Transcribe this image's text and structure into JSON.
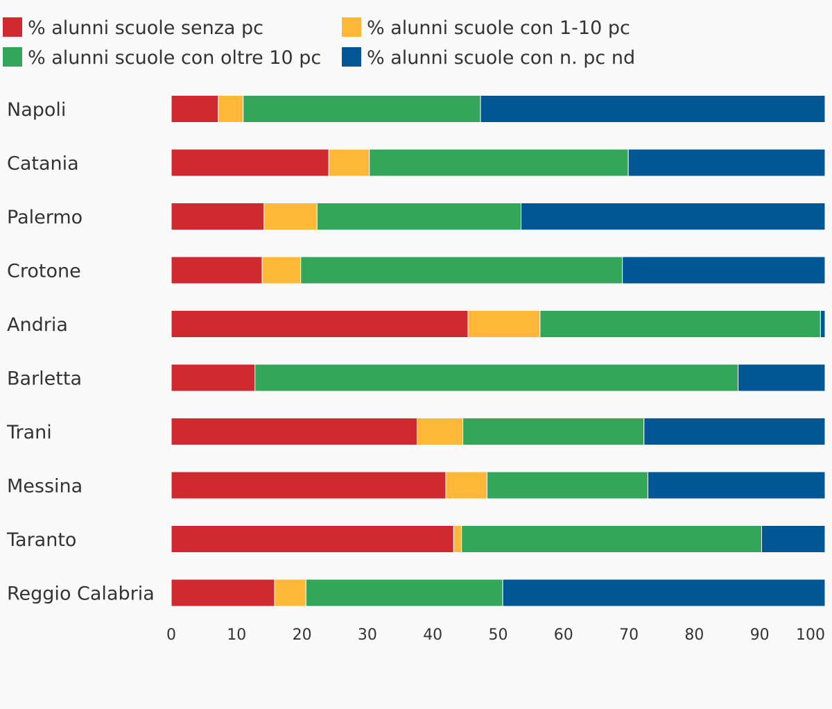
{
  "chart_data": {
    "type": "bar",
    "orientation": "horizontal",
    "stacked": true,
    "title": "",
    "xlabel": "",
    "ylabel": "",
    "xlim": [
      0,
      100
    ],
    "x_ticks": [
      0,
      10,
      20,
      30,
      40,
      50,
      60,
      70,
      80,
      90,
      100
    ],
    "grid": false,
    "legend_position": "top-left",
    "categories": [
      "Napoli",
      "Catania",
      "Palermo",
      "Crotone",
      "Andria",
      "Barletta",
      "Trani",
      "Messina",
      "Taranto",
      "Reggio Calabria"
    ],
    "series": [
      {
        "name": "% alunni scuole senza pc",
        "color": "#cf2a30",
        "values": [
          7.2,
          24.1,
          14.2,
          13.9,
          45.4,
          12.8,
          37.6,
          42.0,
          43.2,
          15.8
        ]
      },
      {
        "name": "% alunni scuole con 1-10 pc",
        "color": "#ffb739",
        "values": [
          3.8,
          6.2,
          8.1,
          5.9,
          11.0,
          0.0,
          7.0,
          6.3,
          1.2,
          4.8
        ]
      },
      {
        "name": "% alunni scuole con oltre 10 pc",
        "color": "#33a65a",
        "values": [
          36.3,
          39.6,
          31.2,
          49.2,
          42.9,
          73.9,
          27.7,
          24.6,
          45.9,
          30.1
        ]
      },
      {
        "name": "% alunni scuole con n. pc nd",
        "color": "#015695",
        "values": [
          52.7,
          30.1,
          46.5,
          31.0,
          0.7,
          13.3,
          27.7,
          27.1,
          9.7,
          49.3
        ]
      }
    ]
  }
}
